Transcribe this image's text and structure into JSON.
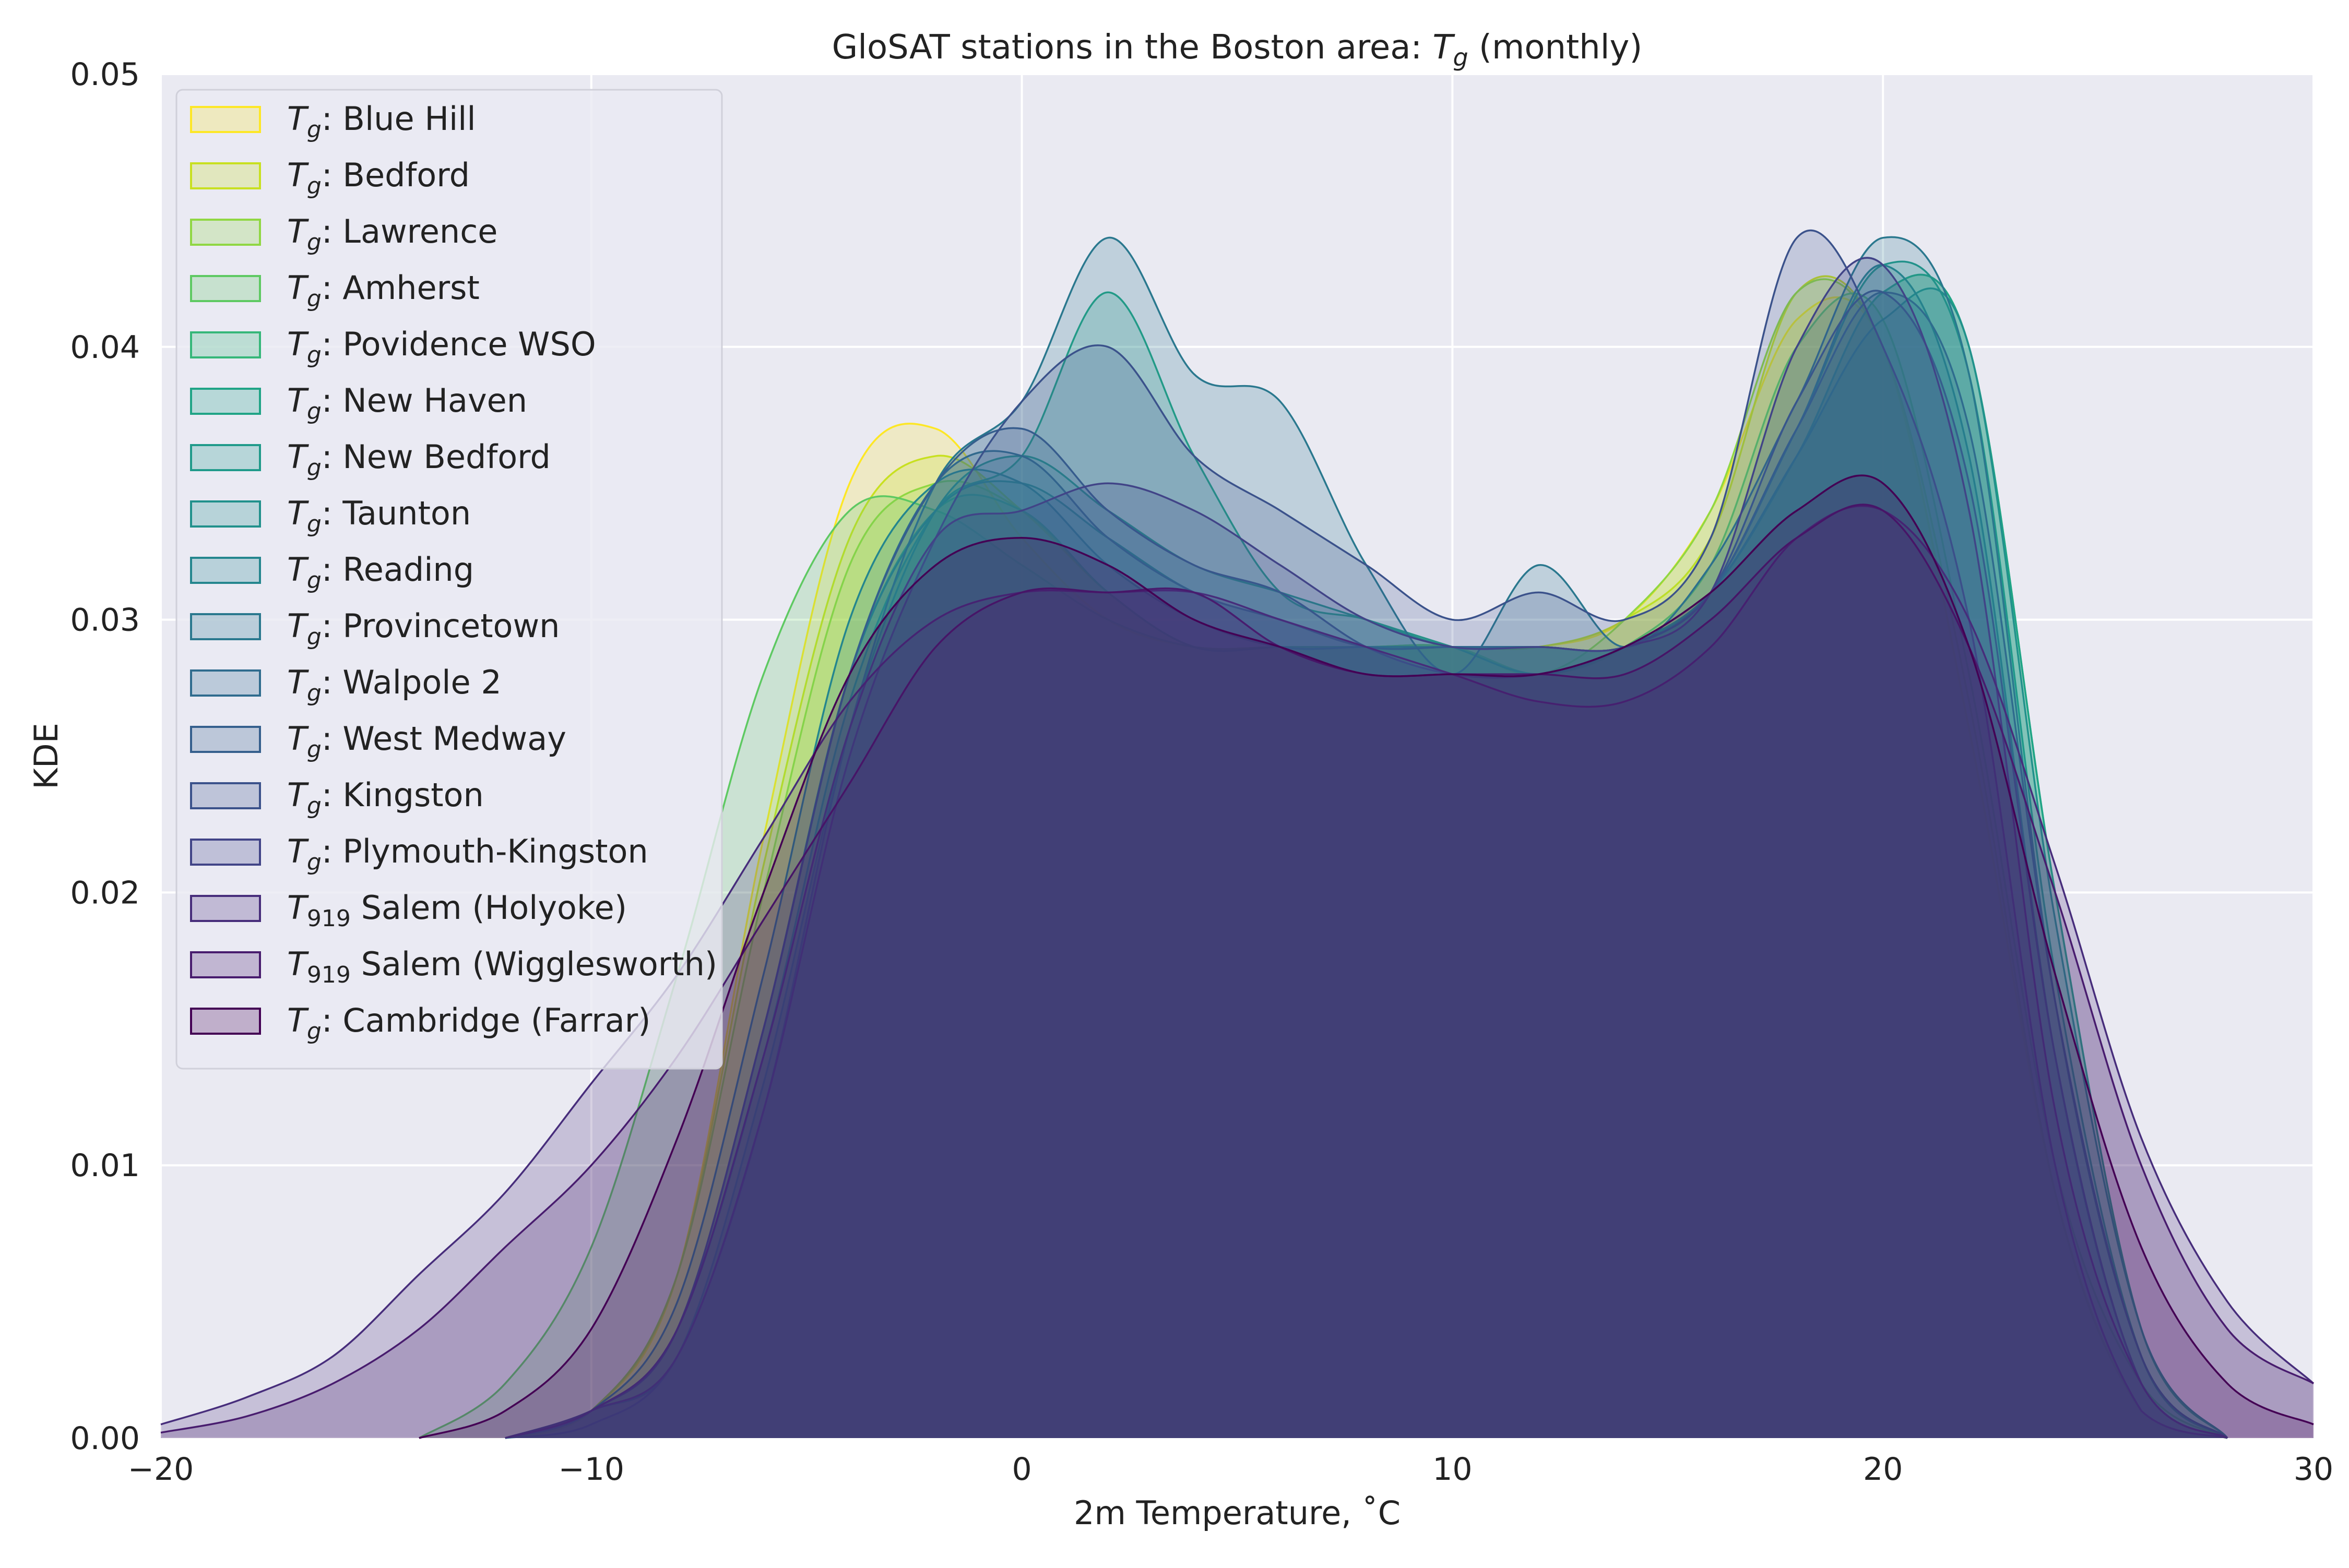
{
  "chart_data": {
    "type": "area",
    "title": "GloSAT stations in the Boston area: T_g (monthly)",
    "title_parts": {
      "before": "GloSAT stations in the Boston area: ",
      "symbol": "T",
      "subscript": "g",
      "after": " (monthly)"
    },
    "xlabel": "2m Temperature, ˚C",
    "ylabel": "KDE",
    "xlim": [
      -20,
      30
    ],
    "ylim": [
      0,
      0.05
    ],
    "xticks": [
      -20,
      -10,
      0,
      10,
      20,
      30
    ],
    "xtick_labels": [
      "−20",
      "−10",
      "0",
      "10",
      "20",
      "30"
    ],
    "yticks": [
      0,
      0.01,
      0.02,
      0.03,
      0.04,
      0.05
    ],
    "ytick_labels": [
      "0.00",
      "0.01",
      "0.02",
      "0.03",
      "0.04",
      "0.05"
    ],
    "grid": true,
    "background": "#eaeaf2",
    "legend_position": "upper-left",
    "series": [
      {
        "name": "T_g: Blue Hill",
        "symbol": "T",
        "subscript": "g",
        "sep": ": ",
        "label": "Blue Hill",
        "color": "#fde725",
        "x": [
          -12,
          -10,
          -8,
          -6,
          -4,
          -2,
          0,
          2,
          4,
          6,
          8,
          10,
          12,
          14,
          16,
          18,
          20,
          22,
          24,
          26,
          28
        ],
        "y": [
          0,
          0.001,
          0.006,
          0.022,
          0.035,
          0.037,
          0.033,
          0.03,
          0.029,
          0.029,
          0.029,
          0.029,
          0.029,
          0.03,
          0.034,
          0.041,
          0.04,
          0.026,
          0.009,
          0.001,
          0
        ]
      },
      {
        "name": "T_g: Bedford",
        "symbol": "T",
        "subscript": "g",
        "sep": ": ",
        "label": "Bedford",
        "color": "#c8e020",
        "x": [
          -12,
          -10,
          -8,
          -6,
          -4,
          -2,
          0,
          2,
          4,
          6,
          8,
          10,
          12,
          14,
          16,
          18,
          20,
          22,
          24,
          26,
          28
        ],
        "y": [
          0,
          0.001,
          0.006,
          0.021,
          0.033,
          0.036,
          0.034,
          0.031,
          0.029,
          0.029,
          0.029,
          0.029,
          0.029,
          0.03,
          0.033,
          0.042,
          0.04,
          0.026,
          0.009,
          0.001,
          0
        ]
      },
      {
        "name": "T_g: Lawrence",
        "symbol": "T",
        "subscript": "g",
        "sep": ": ",
        "label": "Lawrence",
        "color": "#90d743",
        "x": [
          -12,
          -10,
          -8,
          -6,
          -4,
          -2,
          0,
          2,
          4,
          6,
          8,
          10,
          12,
          14,
          16,
          18,
          20,
          22,
          24,
          26,
          28
        ],
        "y": [
          0,
          0.001,
          0.006,
          0.02,
          0.032,
          0.035,
          0.034,
          0.031,
          0.029,
          0.029,
          0.029,
          0.029,
          0.028,
          0.03,
          0.034,
          0.042,
          0.04,
          0.027,
          0.009,
          0.001,
          0
        ]
      },
      {
        "name": "T_g: Amherst",
        "symbol": "T",
        "subscript": "g",
        "sep": ": ",
        "label": "Amherst",
        "color": "#5ec962",
        "x": [
          -14,
          -12,
          -10,
          -8,
          -6,
          -4,
          -2,
          0,
          2,
          4,
          6,
          8,
          10,
          12,
          14,
          16,
          18,
          20,
          22,
          24,
          26,
          28
        ],
        "y": [
          0,
          0.002,
          0.007,
          0.017,
          0.028,
          0.034,
          0.034,
          0.032,
          0.03,
          0.029,
          0.029,
          0.029,
          0.029,
          0.028,
          0.029,
          0.032,
          0.04,
          0.041,
          0.028,
          0.01,
          0.002,
          0
        ]
      },
      {
        "name": "T_g: Povidence WSO",
        "symbol": "T",
        "subscript": "g",
        "sep": ": ",
        "label": "Povidence WSO",
        "color": "#35b779",
        "x": [
          -12,
          -10,
          -8,
          -6,
          -4,
          -2,
          0,
          2,
          4,
          6,
          8,
          10,
          12,
          14,
          16,
          18,
          20,
          22,
          24,
          26,
          28
        ],
        "y": [
          0,
          0.001,
          0.004,
          0.015,
          0.028,
          0.034,
          0.034,
          0.031,
          0.029,
          0.029,
          0.029,
          0.029,
          0.029,
          0.029,
          0.031,
          0.036,
          0.042,
          0.04,
          0.02,
          0.004,
          0
        ]
      },
      {
        "name": "T_g: New Haven",
        "symbol": "T",
        "subscript": "g",
        "sep": ": ",
        "label": "New Haven",
        "color": "#20a486",
        "x": [
          -12,
          -10,
          -8,
          -6,
          -4,
          -2,
          0,
          2,
          4,
          6,
          8,
          10,
          12,
          14,
          16,
          18,
          20,
          22,
          24,
          26,
          28
        ],
        "y": [
          0,
          0.001,
          0.004,
          0.014,
          0.027,
          0.034,
          0.036,
          0.042,
          0.036,
          0.031,
          0.03,
          0.029,
          0.028,
          0.029,
          0.031,
          0.036,
          0.042,
          0.04,
          0.02,
          0.004,
          0
        ]
      },
      {
        "name": "T_g: New Bedford",
        "symbol": "T",
        "subscript": "g",
        "sep": ": ",
        "label": "New Bedford",
        "color": "#1f9a8a",
        "x": [
          -12,
          -10,
          -8,
          -6,
          -4,
          -2,
          0,
          2,
          4,
          6,
          8,
          10,
          12,
          14,
          16,
          18,
          20,
          22,
          24,
          26,
          28
        ],
        "y": [
          0,
          0.001,
          0.003,
          0.013,
          0.026,
          0.034,
          0.036,
          0.034,
          0.032,
          0.031,
          0.03,
          0.029,
          0.029,
          0.029,
          0.031,
          0.037,
          0.043,
          0.039,
          0.017,
          0.003,
          0
        ]
      },
      {
        "name": "T_g: Taunton",
        "symbol": "T",
        "subscript": "g",
        "sep": ": ",
        "label": "Taunton",
        "color": "#21918c",
        "x": [
          -12,
          -10,
          -8,
          -6,
          -4,
          -2,
          0,
          2,
          4,
          6,
          8,
          10,
          12,
          14,
          16,
          18,
          20,
          22,
          24,
          26,
          28
        ],
        "y": [
          0,
          0.001,
          0.004,
          0.015,
          0.028,
          0.034,
          0.035,
          0.033,
          0.031,
          0.03,
          0.029,
          0.029,
          0.029,
          0.029,
          0.031,
          0.036,
          0.041,
          0.04,
          0.019,
          0.004,
          0
        ]
      },
      {
        "name": "T_g: Reading",
        "symbol": "T",
        "subscript": "g",
        "sep": ": ",
        "label": "Reading",
        "color": "#24868e",
        "x": [
          -12,
          -10,
          -8,
          -6,
          -4,
          -2,
          0,
          2,
          4,
          6,
          8,
          10,
          12,
          14,
          16,
          18,
          20,
          22,
          24,
          26,
          28
        ],
        "y": [
          0,
          0.001,
          0.005,
          0.017,
          0.03,
          0.035,
          0.035,
          0.032,
          0.03,
          0.029,
          0.029,
          0.029,
          0.029,
          0.029,
          0.031,
          0.037,
          0.043,
          0.036,
          0.014,
          0.002,
          0
        ]
      },
      {
        "name": "T_g: Provincetown",
        "symbol": "T",
        "subscript": "g",
        "sep": ": ",
        "label": "Provincetown",
        "color": "#2a788e",
        "x": [
          -12,
          -10,
          -8,
          -6,
          -4,
          -2,
          0,
          2,
          4,
          6,
          8,
          10,
          12,
          14,
          16,
          18,
          20,
          22,
          24,
          26,
          28
        ],
        "y": [
          0,
          0.0005,
          0.003,
          0.012,
          0.026,
          0.035,
          0.038,
          0.044,
          0.039,
          0.038,
          0.032,
          0.028,
          0.032,
          0.029,
          0.032,
          0.038,
          0.044,
          0.039,
          0.016,
          0.003,
          0
        ]
      },
      {
        "name": "T_g: Walpole 2",
        "symbol": "T",
        "subscript": "g",
        "sep": ": ",
        "label": "Walpole 2",
        "color": "#2f6c8e",
        "x": [
          -12,
          -10,
          -8,
          -6,
          -4,
          -2,
          0,
          2,
          4,
          6,
          8,
          10,
          12,
          14,
          16,
          18,
          20,
          22,
          24,
          26,
          28
        ],
        "y": [
          0,
          0.001,
          0.004,
          0.015,
          0.028,
          0.035,
          0.036,
          0.033,
          0.031,
          0.03,
          0.029,
          0.029,
          0.029,
          0.029,
          0.031,
          0.037,
          0.042,
          0.037,
          0.016,
          0.003,
          0
        ]
      },
      {
        "name": "T_g: West Medway",
        "symbol": "T",
        "subscript": "g",
        "sep": ": ",
        "label": "West Medway",
        "color": "#355f8d",
        "x": [
          -12,
          -10,
          -8,
          -6,
          -4,
          -2,
          0,
          2,
          4,
          6,
          8,
          10,
          12,
          14,
          16,
          18,
          20,
          22,
          24,
          26,
          28
        ],
        "y": [
          0,
          0.001,
          0.004,
          0.015,
          0.028,
          0.035,
          0.037,
          0.034,
          0.032,
          0.031,
          0.029,
          0.028,
          0.028,
          0.029,
          0.031,
          0.038,
          0.042,
          0.035,
          0.014,
          0.002,
          0
        ]
      },
      {
        "name": "T_g: Kingston",
        "symbol": "T",
        "subscript": "g",
        "sep": ": ",
        "label": "Kingston",
        "color": "#3b528b",
        "x": [
          -12,
          -10,
          -8,
          -6,
          -4,
          -2,
          0,
          2,
          4,
          6,
          8,
          10,
          12,
          14,
          16,
          18,
          20,
          22,
          24,
          26,
          28
        ],
        "y": [
          0,
          0.001,
          0.003,
          0.012,
          0.025,
          0.033,
          0.038,
          0.04,
          0.036,
          0.034,
          0.032,
          0.03,
          0.031,
          0.03,
          0.033,
          0.044,
          0.04,
          0.03,
          0.01,
          0.001,
          0
        ]
      },
      {
        "name": "T_g: Plymouth-Kingston",
        "symbol": "T",
        "subscript": "g",
        "sep": ": ",
        "label": "Plymouth-Kingston",
        "color": "#414487",
        "x": [
          -12,
          -10,
          -8,
          -6,
          -4,
          -2,
          0,
          2,
          4,
          6,
          8,
          10,
          12,
          14,
          16,
          18,
          20,
          22,
          24,
          26,
          28
        ],
        "y": [
          0,
          0.001,
          0.004,
          0.014,
          0.026,
          0.033,
          0.034,
          0.035,
          0.034,
          0.032,
          0.03,
          0.029,
          0.029,
          0.029,
          0.031,
          0.04,
          0.043,
          0.034,
          0.012,
          0.002,
          0
        ]
      },
      {
        "name": "T_919 Salem (Holyoke)",
        "symbol": "T",
        "subscript": "919",
        "sep": " ",
        "label": "Salem (Holyoke)",
        "color": "#472d7b",
        "x": [
          -20,
          -18,
          -16,
          -14,
          -12,
          -10,
          -8,
          -6,
          -4,
          -2,
          0,
          2,
          4,
          6,
          8,
          10,
          12,
          14,
          16,
          18,
          20,
          22,
          24,
          26,
          28,
          30
        ],
        "y": [
          0.0005,
          0.0015,
          0.003,
          0.006,
          0.009,
          0.013,
          0.017,
          0.022,
          0.027,
          0.03,
          0.031,
          0.031,
          0.031,
          0.03,
          0.029,
          0.028,
          0.027,
          0.027,
          0.029,
          0.033,
          0.034,
          0.03,
          0.021,
          0.011,
          0.005,
          0.002
        ]
      },
      {
        "name": "T_919 Salem (Wigglesworth)",
        "symbol": "T",
        "subscript": "919",
        "sep": " ",
        "label": "Salem (Wigglesworth)",
        "color": "#481c6e",
        "x": [
          -20,
          -18,
          -16,
          -14,
          -12,
          -10,
          -8,
          -6,
          -4,
          -2,
          0,
          2,
          4,
          6,
          8,
          10,
          12,
          14,
          16,
          18,
          20,
          22,
          24,
          26,
          28,
          30
        ],
        "y": [
          0.0002,
          0.0008,
          0.002,
          0.004,
          0.007,
          0.01,
          0.014,
          0.019,
          0.024,
          0.029,
          0.031,
          0.031,
          0.031,
          0.029,
          0.028,
          0.028,
          0.028,
          0.028,
          0.03,
          0.033,
          0.034,
          0.029,
          0.02,
          0.01,
          0.004,
          0.002
        ]
      },
      {
        "name": "T_g: Cambridge (Farrar)",
        "symbol": "T",
        "subscript": "g",
        "sep": ": ",
        "label": "Cambridge (Farrar)",
        "color": "#440154",
        "x": [
          -14,
          -12,
          -10,
          -8,
          -6,
          -4,
          -2,
          0,
          2,
          4,
          6,
          8,
          10,
          12,
          14,
          16,
          18,
          20,
          22,
          24,
          26,
          28,
          30
        ],
        "y": [
          0,
          0.001,
          0.004,
          0.011,
          0.02,
          0.028,
          0.032,
          0.033,
          0.032,
          0.03,
          0.029,
          0.028,
          0.028,
          0.028,
          0.029,
          0.031,
          0.034,
          0.035,
          0.029,
          0.017,
          0.007,
          0.002,
          0.0005
        ]
      }
    ]
  }
}
